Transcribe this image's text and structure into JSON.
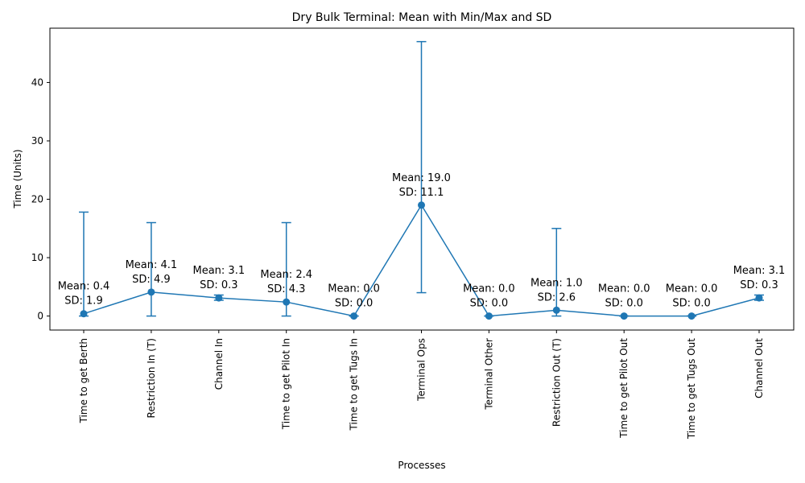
{
  "chart_data": {
    "type": "line",
    "title": "Dry Bulk Terminal: Mean with Min/Max and SD",
    "xlabel": "Processes",
    "ylabel": "Time (Units)",
    "ylim": [
      -2.4,
      49.3
    ],
    "yticks": [
      0,
      10,
      20,
      30,
      40
    ],
    "grid": false,
    "color": "#1f77b4",
    "categories": [
      "Time to get Berth",
      "Restriction In (T)",
      "Channel In",
      "Time to get Pilot In",
      "Time to get Tugs In",
      "Terminal Ops",
      "Terminal Other",
      "Restriction Out (T)",
      "Time to get Pilot Out",
      "Time to get Tugs Out",
      "Channel Out"
    ],
    "mean": [
      0.4,
      4.1,
      3.1,
      2.4,
      0.0,
      19.0,
      0.0,
      1.0,
      0.0,
      0.0,
      3.1
    ],
    "sd": [
      1.9,
      4.9,
      0.3,
      4.3,
      0.0,
      11.1,
      0.0,
      2.6,
      0.0,
      0.0,
      0.3
    ],
    "min": [
      0,
      0,
      2.7,
      0,
      0,
      4,
      0,
      0,
      0,
      0,
      2.7
    ],
    "max": [
      17.8,
      16,
      3.6,
      16,
      0,
      47,
      0,
      15,
      0,
      0,
      3.6
    ],
    "annotations": [
      [
        "Mean: 0.4",
        "SD: 1.9"
      ],
      [
        "Mean: 4.1",
        "SD: 4.9"
      ],
      [
        "Mean: 3.1",
        "SD: 0.3"
      ],
      [
        "Mean: 2.4",
        "SD: 4.3"
      ],
      [
        "Mean: 0.0",
        "SD: 0.0"
      ],
      [
        "Mean: 19.0",
        "SD: 11.1"
      ],
      [
        "Mean: 0.0",
        "SD: 0.0"
      ],
      [
        "Mean: 1.0",
        "SD: 2.6"
      ],
      [
        "Mean: 0.0",
        "SD: 0.0"
      ],
      [
        "Mean: 0.0",
        "SD: 0.0"
      ],
      [
        "Mean: 3.1",
        "SD: 0.3"
      ]
    ]
  }
}
